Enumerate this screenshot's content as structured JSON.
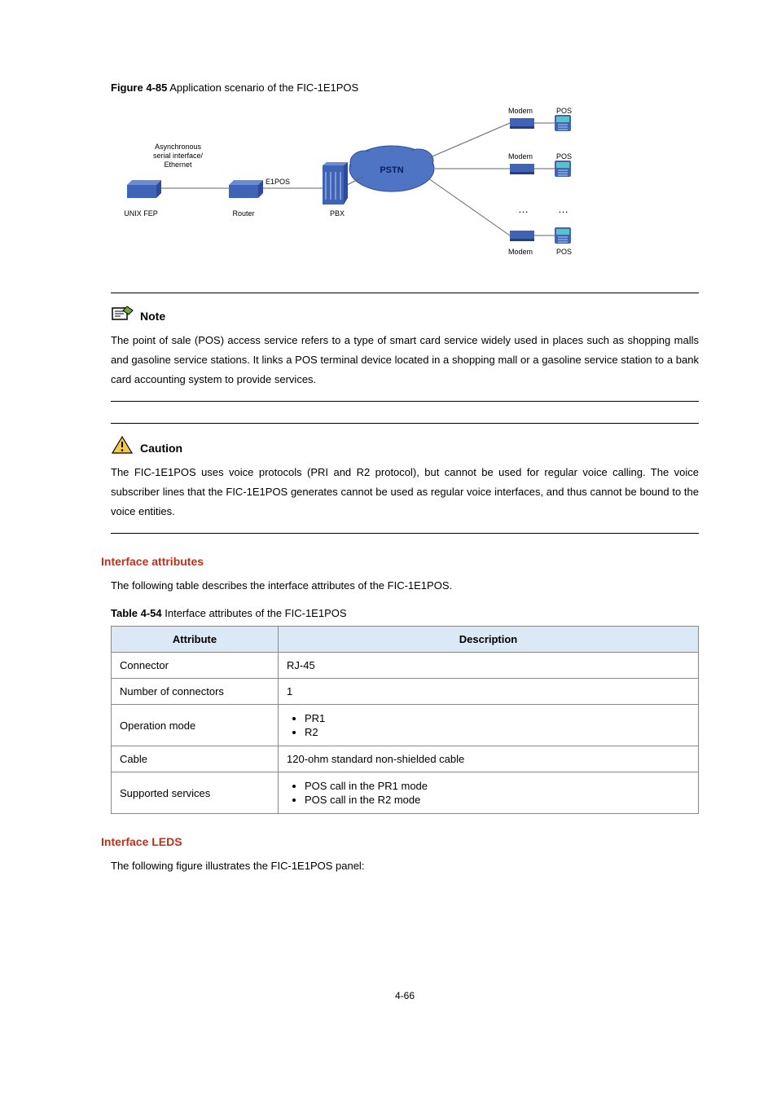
{
  "figure": {
    "label": "Figure 4-85",
    "title": "Application scenario of the FIC-1E1POS",
    "labels": {
      "async": "Asynchronous\nserial interface/\nEthernet",
      "unix_fep": "UNIX  FEP",
      "router": "Router",
      "e1pos": "E1POS",
      "pbx": "PBX",
      "pstn": "PSTN",
      "modem": "Modem",
      "pos": "POS",
      "dots": "…"
    },
    "colors": {
      "device_fill": "#3f63b5",
      "device_shadow": "#2a3f7a",
      "link": "#666666",
      "cloud_fill": "#4f74c4",
      "cloud_stroke": "#2e4e9e",
      "pos_card": "#55c6c6",
      "label": "#000000",
      "pstn_text": "#081e5a"
    }
  },
  "note": {
    "label": "Note",
    "text": "The point of sale (POS) access service refers to a type of smart card service widely used in places such as shopping malls and gasoline service stations. It links a POS terminal device located in a shopping mall or a gasoline service station to a bank card accounting system to provide services."
  },
  "caution": {
    "label": "Caution",
    "text": "The FIC-1E1POS uses voice protocols (PRI and R2 protocol), but cannot be used for regular voice calling. The voice subscriber lines that the FIC-1E1POS generates cannot be used as regular voice interfaces, and thus cannot be bound to the voice entities."
  },
  "section_attributes": {
    "heading": "Interface attributes",
    "intro": "The following table describes the interface attributes of the FIC-1E1POS.",
    "table_label": "Table 4-54",
    "table_title": "Interface attributes of the FIC-1E1POS",
    "columns": [
      "Attribute",
      "Description"
    ],
    "rows": [
      {
        "attr": "Connector",
        "desc_text": "RJ-45"
      },
      {
        "attr": "Number of connectors",
        "desc_text": "1"
      },
      {
        "attr": "Operation mode",
        "desc_list": [
          "PR1",
          "R2"
        ]
      },
      {
        "attr": "Cable",
        "desc_text": "120-ohm standard non-shielded cable"
      },
      {
        "attr": "Supported services",
        "desc_list": [
          "POS call in the PR1 mode",
          "POS call in the R2 mode"
        ]
      }
    ]
  },
  "section_leds": {
    "heading": "Interface LEDS",
    "intro": "The following figure illustrates the FIC-1E1POS panel:"
  },
  "page_number": "4-66"
}
